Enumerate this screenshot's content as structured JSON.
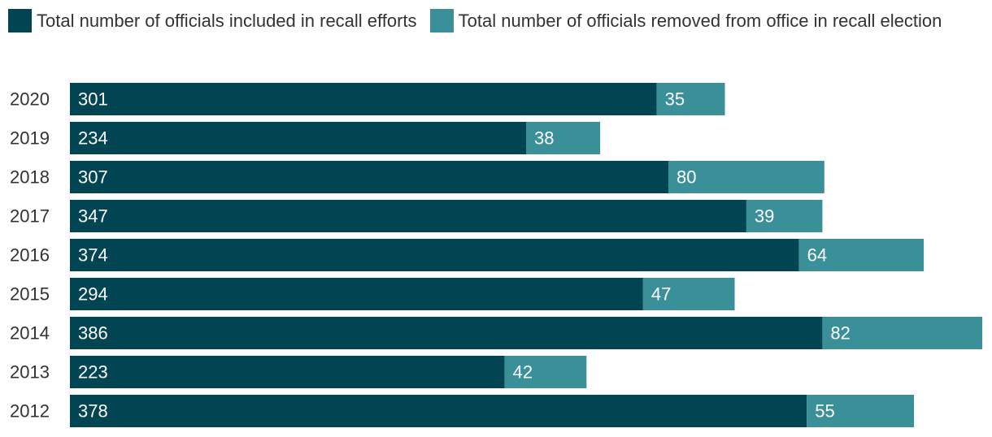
{
  "chart_data": {
    "type": "bar",
    "orientation": "horizontal",
    "stacked": true,
    "legend_position": "top-left",
    "grid": false,
    "title": "",
    "xlabel": "",
    "ylabel": "",
    "categories": [
      "2020",
      "2019",
      "2018",
      "2017",
      "2016",
      "2015",
      "2014",
      "2013",
      "2012"
    ],
    "series": [
      {
        "name": "Total number of officials included in recall efforts",
        "color": "#024552",
        "values": [
          301,
          234,
          307,
          347,
          374,
          294,
          386,
          223,
          378
        ]
      },
      {
        "name": "Total number of officials removed from office in recall election",
        "color": "#3a9099",
        "values": [
          35,
          38,
          80,
          39,
          64,
          47,
          82,
          42,
          55
        ]
      }
    ],
    "xlim": [
      0,
      468
    ]
  }
}
